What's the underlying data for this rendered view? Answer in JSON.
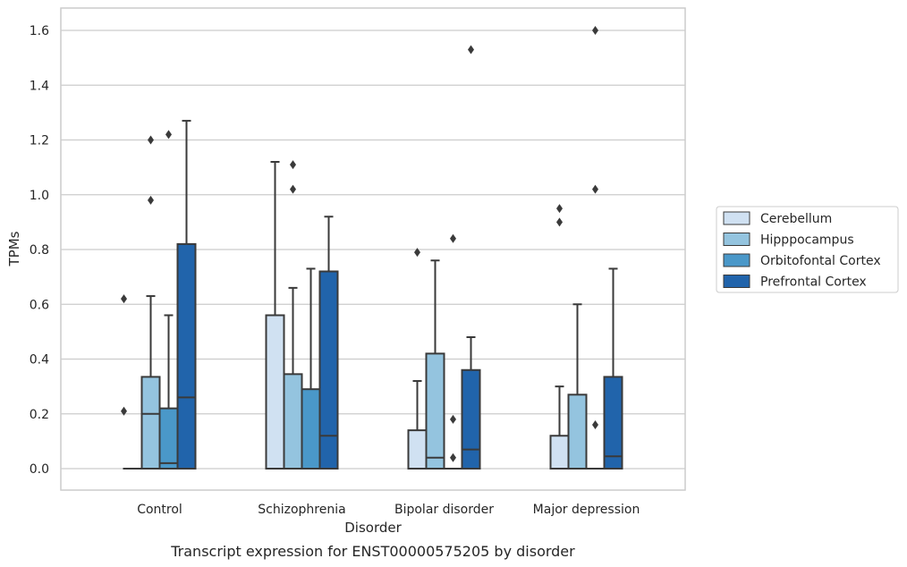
{
  "chart_data": {
    "type": "box",
    "caption": "Transcript expression for ENST00000575205 by disorder",
    "xlabel": "Disorder",
    "ylabel": "TPMs",
    "ylim": [
      -0.08,
      1.68
    ],
    "yticks": [
      0.0,
      0.2,
      0.4,
      0.6,
      0.8,
      1.0,
      1.2,
      1.4,
      1.6
    ],
    "ytick_labels": [
      "0.0",
      "0.2",
      "0.4",
      "0.6",
      "0.8",
      "1.0",
      "1.2",
      "1.4",
      "1.6"
    ],
    "grid": true,
    "legend_position": "right",
    "categories": [
      "Control",
      "Schizophrenia",
      "Bipolar disorder",
      "Major depression"
    ],
    "series": [
      {
        "name": "Cerebellum",
        "color": "#d0e1f2",
        "boxes": [
          {
            "whislo": 0,
            "q1": 0,
            "med": 0,
            "q3": 0,
            "whishi": 0,
            "fliers": []
          },
          {
            "whislo": 0,
            "q1": 0,
            "med": 0,
            "q3": 0.56,
            "whishi": 1.12,
            "fliers": []
          },
          {
            "whislo": 0,
            "q1": 0,
            "med": 0,
            "q3": 0.14,
            "whishi": 0.32,
            "fliers": [
              0.79
            ]
          },
          {
            "whislo": 0,
            "q1": 0,
            "med": 0,
            "q3": 0.12,
            "whishi": 0.3,
            "fliers": [
              0.9,
              0.95
            ]
          }
        ]
      },
      {
        "name": "Hipppocampus",
        "color": "#94c4df",
        "boxes": [
          {
            "whislo": 0,
            "q1": 0,
            "med": 0.2,
            "q3": 0.335,
            "whishi": 0.63,
            "fliers": [
              0.98,
              1.2
            ]
          },
          {
            "whislo": 0,
            "q1": 0,
            "med": 0,
            "q3": 0.345,
            "whishi": 0.66,
            "fliers": [
              1.02,
              1.11
            ]
          },
          {
            "whislo": 0,
            "q1": 0,
            "med": 0.04,
            "q3": 0.42,
            "whishi": 0.76,
            "fliers": []
          },
          {
            "whislo": 0,
            "q1": 0,
            "med": 0,
            "q3": 0.27,
            "whishi": 0.6,
            "fliers": []
          }
        ]
      },
      {
        "name": "Orbitofontal Cortex",
        "color": "#4a98c9",
        "boxes": [
          {
            "whislo": 0,
            "q1": 0,
            "med": 0.02,
            "q3": 0.22,
            "whishi": 0.56,
            "fliers": [
              1.22
            ]
          },
          {
            "whislo": 0,
            "q1": 0,
            "med": 0,
            "q3": 0.29,
            "whishi": 0.73,
            "fliers": []
          },
          {
            "whislo": 0,
            "q1": 0,
            "med": 0,
            "q3": 0,
            "whishi": 0,
            "fliers": [
              0.04,
              0.18,
              0.84
            ]
          },
          {
            "whislo": 0,
            "q1": 0,
            "med": 0,
            "q3": 0,
            "whishi": 0,
            "fliers": [
              0.16,
              1.02,
              1.6
            ]
          }
        ]
      },
      {
        "name": "Prefrontal Cortex",
        "color": "#2164ab",
        "boxes": [
          {
            "whislo": 0,
            "q1": 0,
            "med": 0.26,
            "q3": 0.82,
            "whishi": 1.27,
            "fliers": []
          },
          {
            "whislo": 0,
            "q1": 0,
            "med": 0.12,
            "q3": 0.72,
            "whishi": 0.92,
            "fliers": []
          },
          {
            "whislo": 0,
            "q1": 0,
            "med": 0.07,
            "q3": 0.36,
            "whishi": 0.48,
            "fliers": [
              1.53
            ]
          },
          {
            "whislo": 0,
            "q1": 0,
            "med": 0.045,
            "q3": 0.335,
            "whishi": 0.73,
            "fliers": []
          }
        ]
      }
    ],
    "extra_fliers": [
      {
        "category": "Control",
        "value": 0.21
      },
      {
        "category": "Control",
        "value": 0.62
      }
    ]
  }
}
